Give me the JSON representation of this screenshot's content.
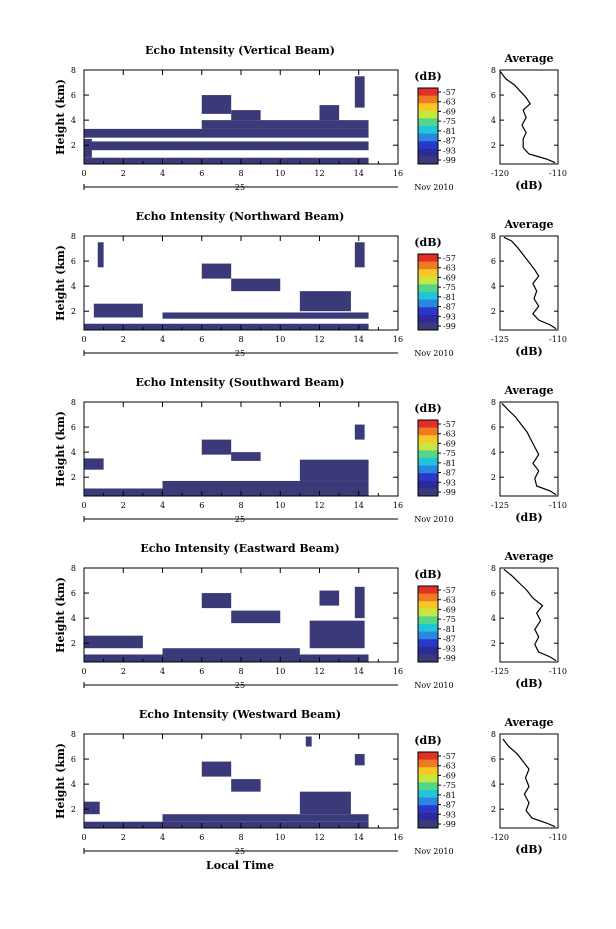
{
  "figure": {
    "bottom_xlabel": "Local Time",
    "date_label": "Nov 2010",
    "day_label": "25",
    "colorbar_unit": "(dB)",
    "average_title": "Average",
    "average_xlabel": "(dB)"
  },
  "colors": {
    "background_echo": "#3a3a78",
    "profile_line": "#000000"
  },
  "colorbar": {
    "ticks": [
      "-57",
      "-63",
      "-69",
      "-75",
      "-81",
      "-87",
      "-93",
      "-99"
    ],
    "colors": [
      "#e0302a",
      "#f07a22",
      "#f7c825",
      "#c8e640",
      "#52d68a",
      "#22c4d8",
      "#2a86e0",
      "#2a38c8",
      "#2a2a9a",
      "#3a3a78"
    ]
  },
  "chart_data": [
    {
      "type": "heatmap",
      "title": "Echo Intensity (Vertical Beam)",
      "ylabel": "Height (km)",
      "xlim": [
        0,
        16
      ],
      "ylim": [
        0.5,
        8
      ],
      "x_ticks": [
        "0",
        "2",
        "4",
        "6",
        "8",
        "10",
        "12",
        "14",
        "16"
      ],
      "y_ticks": [
        "2",
        "4",
        "6",
        "8"
      ],
      "echo_regions": [
        {
          "x0": 0,
          "x1": 14.5,
          "y0": 0.5,
          "y1": 1.0
        },
        {
          "x0": 0,
          "x1": 14.5,
          "y0": 1.6,
          "y1": 2.3
        },
        {
          "x0": 0,
          "x1": 14.5,
          "y0": 2.6,
          "y1": 3.3
        },
        {
          "x0": 6.0,
          "x1": 14.5,
          "y0": 3.3,
          "y1": 4.0
        },
        {
          "x0": 6.0,
          "x1": 7.5,
          "y0": 4.5,
          "y1": 6.0
        },
        {
          "x0": 7.5,
          "x1": 9.0,
          "y0": 4.0,
          "y1": 4.8
        },
        {
          "x0": 12.0,
          "x1": 13.0,
          "y0": 4.0,
          "y1": 5.2
        },
        {
          "x0": 13.8,
          "x1": 14.3,
          "y0": 5.0,
          "y1": 7.5
        },
        {
          "x0": 0,
          "x1": 0.4,
          "y0": 1.0,
          "y1": 2.5
        }
      ],
      "average": {
        "xlim": [
          -120,
          -110
        ],
        "ylim": [
          0.5,
          8
        ],
        "x_ticks": [
          "-120",
          "-110"
        ],
        "y_ticks": [
          "2",
          "4",
          "6",
          "8"
        ],
        "profile": [
          [
            -110.5,
            0.6
          ],
          [
            -112,
            0.9
          ],
          [
            -115,
            1.3
          ],
          [
            -116,
            1.8
          ],
          [
            -116,
            2.5
          ],
          [
            -115.5,
            3.0
          ],
          [
            -116.2,
            3.6
          ],
          [
            -115.5,
            4.2
          ],
          [
            -116,
            4.8
          ],
          [
            -114.8,
            5.3
          ],
          [
            -115.5,
            5.8
          ],
          [
            -116.5,
            6.3
          ],
          [
            -117.5,
            6.8
          ],
          [
            -119,
            7.3
          ],
          [
            -120,
            7.9
          ]
        ]
      }
    },
    {
      "type": "heatmap",
      "title": "Echo Intensity (Northward Beam)",
      "ylabel": "Height (km)",
      "xlim": [
        0,
        16
      ],
      "ylim": [
        0.5,
        8
      ],
      "x_ticks": [
        "0",
        "2",
        "4",
        "6",
        "8",
        "10",
        "12",
        "14",
        "16"
      ],
      "y_ticks": [
        "2",
        "4",
        "6",
        "8"
      ],
      "echo_regions": [
        {
          "x0": 0,
          "x1": 14.5,
          "y0": 0.5,
          "y1": 1.0
        },
        {
          "x0": 0.5,
          "x1": 3.0,
          "y0": 1.5,
          "y1": 2.6
        },
        {
          "x0": 4.0,
          "x1": 14.5,
          "y0": 1.4,
          "y1": 1.9
        },
        {
          "x0": 11.0,
          "x1": 13.6,
          "y0": 2.0,
          "y1": 3.6
        },
        {
          "x0": 6.0,
          "x1": 7.5,
          "y0": 4.6,
          "y1": 5.8
        },
        {
          "x0": 7.5,
          "x1": 10.0,
          "y0": 3.6,
          "y1": 4.6
        },
        {
          "x0": 13.8,
          "x1": 14.3,
          "y0": 5.5,
          "y1": 7.5
        },
        {
          "x0": 0.7,
          "x1": 1.0,
          "y0": 5.5,
          "y1": 7.5
        }
      ],
      "average": {
        "xlim": [
          -125,
          -110
        ],
        "ylim": [
          0.5,
          8
        ],
        "x_ticks": [
          "-125",
          "-110"
        ],
        "y_ticks": [
          "2",
          "4",
          "6",
          "8"
        ],
        "profile": [
          [
            -110.5,
            0.6
          ],
          [
            -112,
            0.9
          ],
          [
            -115,
            1.3
          ],
          [
            -116.5,
            1.8
          ],
          [
            -115,
            2.4
          ],
          [
            -116.2,
            3.0
          ],
          [
            -115.5,
            3.6
          ],
          [
            -116.5,
            4.2
          ],
          [
            -115,
            4.8
          ],
          [
            -116,
            5.3
          ],
          [
            -117.5,
            5.9
          ],
          [
            -119,
            6.5
          ],
          [
            -120.5,
            7.1
          ],
          [
            -122,
            7.6
          ],
          [
            -124,
            7.9
          ]
        ]
      }
    },
    {
      "type": "heatmap",
      "title": "Echo Intensity (Southward Beam)",
      "ylabel": "Height (km)",
      "xlim": [
        0,
        16
      ],
      "ylim": [
        0.5,
        8
      ],
      "x_ticks": [
        "0",
        "2",
        "4",
        "6",
        "8",
        "10",
        "12",
        "14",
        "16"
      ],
      "y_ticks": [
        "2",
        "4",
        "6",
        "8"
      ],
      "echo_regions": [
        {
          "x0": 0,
          "x1": 14.5,
          "y0": 0.5,
          "y1": 1.1
        },
        {
          "x0": 0,
          "x1": 1.0,
          "y0": 2.6,
          "y1": 3.5
        },
        {
          "x0": 4.0,
          "x1": 14.5,
          "y0": 1.1,
          "y1": 1.7
        },
        {
          "x0": 11.0,
          "x1": 14.5,
          "y0": 1.7,
          "y1": 3.4
        },
        {
          "x0": 6.0,
          "x1": 7.5,
          "y0": 3.8,
          "y1": 5.0
        },
        {
          "x0": 7.5,
          "x1": 9.0,
          "y0": 3.3,
          "y1": 4.0
        },
        {
          "x0": 13.8,
          "x1": 14.3,
          "y0": 5.0,
          "y1": 6.2
        }
      ],
      "average": {
        "xlim": [
          -125,
          -110
        ],
        "ylim": [
          0.5,
          8
        ],
        "x_ticks": [
          "-125",
          "-110"
        ],
        "y_ticks": [
          "2",
          "4",
          "6",
          "8"
        ],
        "profile": [
          [
            -110.5,
            0.6
          ],
          [
            -112,
            0.9
          ],
          [
            -115.5,
            1.3
          ],
          [
            -116,
            1.9
          ],
          [
            -115,
            2.5
          ],
          [
            -116.5,
            3.1
          ],
          [
            -115,
            3.8
          ],
          [
            -116,
            4.4
          ],
          [
            -117,
            5.0
          ],
          [
            -118,
            5.6
          ],
          [
            -119.5,
            6.2
          ],
          [
            -121,
            6.8
          ],
          [
            -123,
            7.4
          ],
          [
            -124.5,
            7.9
          ]
        ]
      }
    },
    {
      "type": "heatmap",
      "title": "Echo Intensity (Eastward Beam)",
      "ylabel": "Height (km)",
      "xlim": [
        0,
        16
      ],
      "ylim": [
        0.5,
        8
      ],
      "x_ticks": [
        "0",
        "2",
        "4",
        "6",
        "8",
        "10",
        "12",
        "14",
        "16"
      ],
      "y_ticks": [
        "2",
        "4",
        "6",
        "8"
      ],
      "echo_regions": [
        {
          "x0": 0,
          "x1": 14.5,
          "y0": 0.5,
          "y1": 1.1
        },
        {
          "x0": 0,
          "x1": 3.0,
          "y0": 1.6,
          "y1": 2.6
        },
        {
          "x0": 4.0,
          "x1": 11.0,
          "y0": 1.1,
          "y1": 1.6
        },
        {
          "x0": 11.5,
          "x1": 14.3,
          "y0": 1.6,
          "y1": 3.8
        },
        {
          "x0": 6.0,
          "x1": 7.5,
          "y0": 4.8,
          "y1": 6.0
        },
        {
          "x0": 7.5,
          "x1": 10.0,
          "y0": 3.6,
          "y1": 4.6
        },
        {
          "x0": 13.8,
          "x1": 14.3,
          "y0": 4.0,
          "y1": 6.5
        },
        {
          "x0": 12.0,
          "x1": 13.0,
          "y0": 5.0,
          "y1": 6.2
        }
      ],
      "average": {
        "xlim": [
          -125,
          -110
        ],
        "ylim": [
          0.5,
          8
        ],
        "x_ticks": [
          "-125",
          "-110"
        ],
        "y_ticks": [
          "2",
          "4",
          "6",
          "8"
        ],
        "profile": [
          [
            -110.5,
            0.6
          ],
          [
            -112,
            0.9
          ],
          [
            -115,
            1.3
          ],
          [
            -116,
            1.9
          ],
          [
            -115,
            2.5
          ],
          [
            -116,
            3.1
          ],
          [
            -114.5,
            3.8
          ],
          [
            -115.5,
            4.4
          ],
          [
            -114,
            5.0
          ],
          [
            -116.5,
            5.6
          ],
          [
            -118,
            6.2
          ],
          [
            -120,
            6.8
          ],
          [
            -122,
            7.4
          ],
          [
            -124,
            7.9
          ]
        ]
      }
    },
    {
      "type": "heatmap",
      "title": "Echo Intensity (Westward Beam)",
      "ylabel": "Height (km)",
      "xlim": [
        0,
        16
      ],
      "ylim": [
        0.5,
        8
      ],
      "x_ticks": [
        "0",
        "2",
        "4",
        "6",
        "8",
        "10",
        "12",
        "14",
        "16"
      ],
      "y_ticks": [
        "2",
        "4",
        "6",
        "8"
      ],
      "xlabel": "Local Time",
      "echo_regions": [
        {
          "x0": 0,
          "x1": 14.5,
          "y0": 0.5,
          "y1": 1.0
        },
        {
          "x0": 0,
          "x1": 0.8,
          "y0": 1.6,
          "y1": 2.6
        },
        {
          "x0": 4.0,
          "x1": 14.5,
          "y0": 1.0,
          "y1": 1.6
        },
        {
          "x0": 11.0,
          "x1": 13.6,
          "y0": 1.6,
          "y1": 3.4
        },
        {
          "x0": 6.0,
          "x1": 7.5,
          "y0": 4.6,
          "y1": 5.8
        },
        {
          "x0": 7.5,
          "x1": 9.0,
          "y0": 3.4,
          "y1": 4.4
        },
        {
          "x0": 13.8,
          "x1": 14.3,
          "y0": 5.5,
          "y1": 6.4
        },
        {
          "x0": 11.3,
          "x1": 11.6,
          "y0": 7.0,
          "y1": 7.8
        }
      ],
      "average": {
        "xlim": [
          -120,
          -110
        ],
        "ylim": [
          0.5,
          8
        ],
        "x_ticks": [
          "-120",
          "-110"
        ],
        "y_ticks": [
          "2",
          "4",
          "6",
          "8"
        ],
        "profile": [
          [
            -110.5,
            0.6
          ],
          [
            -112,
            0.9
          ],
          [
            -114.5,
            1.3
          ],
          [
            -115.5,
            1.9
          ],
          [
            -115,
            2.5
          ],
          [
            -115.8,
            3.2
          ],
          [
            -115,
            3.8
          ],
          [
            -115.6,
            4.5
          ],
          [
            -115,
            5.2
          ],
          [
            -116,
            5.8
          ],
          [
            -117,
            6.4
          ],
          [
            -118.5,
            7.0
          ],
          [
            -119.5,
            7.6
          ]
        ]
      }
    }
  ]
}
